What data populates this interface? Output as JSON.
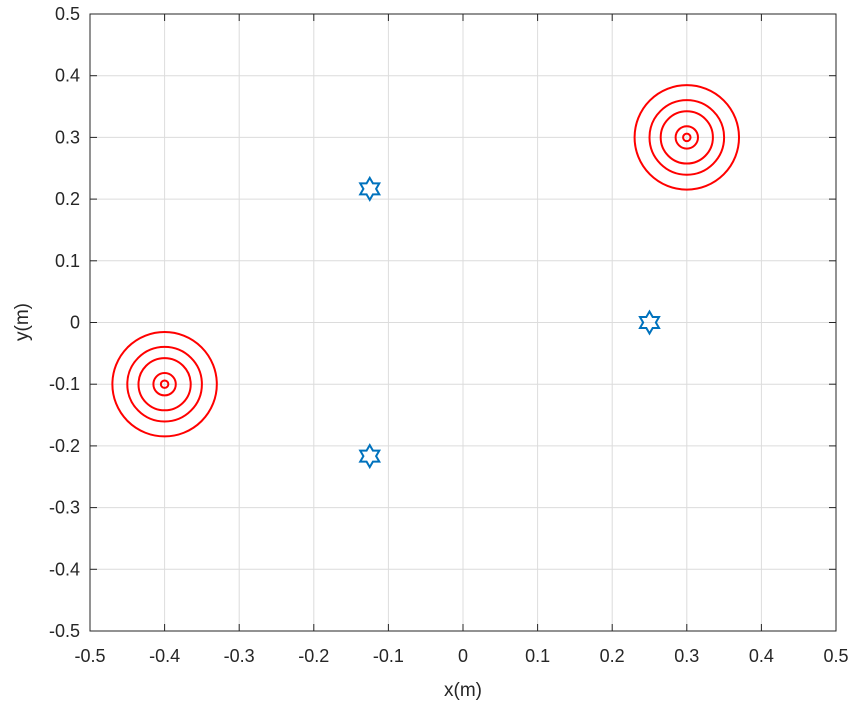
{
  "chart_data": {
    "type": "scatter",
    "title": "",
    "xlabel": "x(m)",
    "ylabel": "y(m)",
    "xlim": [
      -0.5,
      0.5
    ],
    "ylim": [
      -0.5,
      0.5
    ],
    "grid": true,
    "x_ticks": [
      -0.5,
      -0.4,
      -0.3,
      -0.2,
      -0.1,
      0,
      0.1,
      0.2,
      0.3,
      0.4,
      0.5
    ],
    "y_ticks": [
      -0.5,
      -0.4,
      -0.3,
      -0.2,
      -0.1,
      0,
      0.1,
      0.2,
      0.3,
      0.4,
      0.5
    ],
    "x_tick_labels": [
      "-0.5",
      "-0.4",
      "-0.3",
      "-0.2",
      "-0.1",
      "0",
      "0.1",
      "0.2",
      "0.3",
      "0.4",
      "0.5"
    ],
    "y_tick_labels": [
      "-0.5",
      "-0.4",
      "-0.3",
      "-0.2",
      "-0.1",
      "0",
      "0.1",
      "0.2",
      "0.3",
      "0.4",
      "0.5"
    ],
    "series": [
      {
        "marker": "hexagram",
        "color": "#0072BD",
        "points": [
          {
            "x": 0.25,
            "y": 0.0
          },
          {
            "x": -0.125,
            "y": 0.2165
          },
          {
            "x": -0.125,
            "y": -0.2165
          }
        ]
      },
      {
        "marker": "concentric-circles",
        "color": "#FF0000",
        "points": [
          {
            "x": 0.3,
            "y": 0.3
          },
          {
            "x": -0.4,
            "y": -0.1
          }
        ],
        "ring_radii": [
          0.005,
          0.015,
          0.035,
          0.05,
          0.07
        ]
      }
    ]
  }
}
